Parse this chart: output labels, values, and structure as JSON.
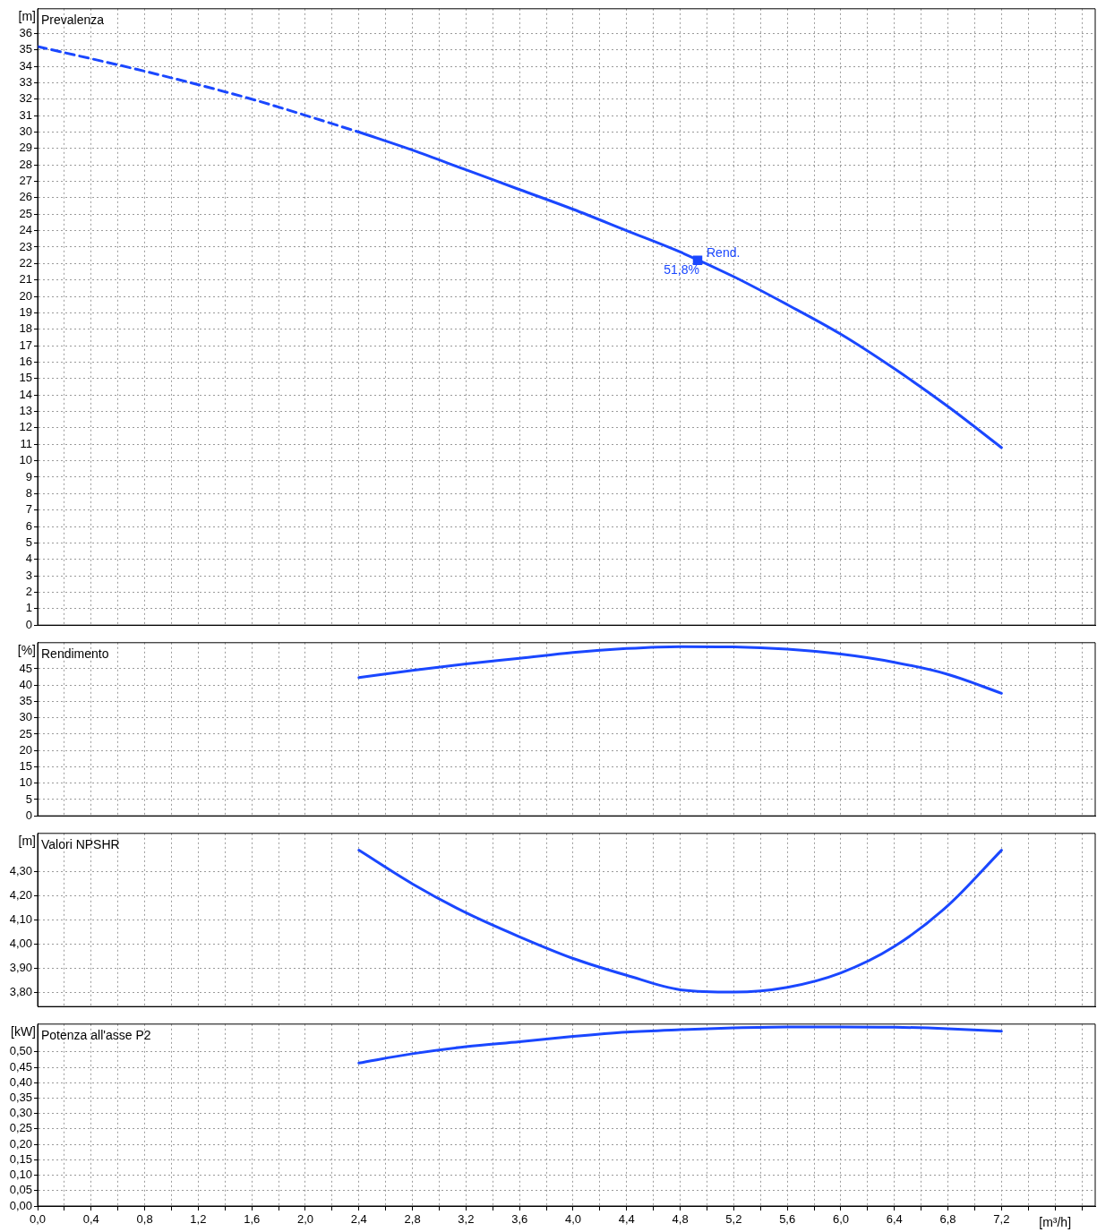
{
  "chart_data": [
    {
      "type": "line",
      "title": "Prevalenza",
      "ylabel": "[m]",
      "xlim": [
        0,
        7.9
      ],
      "xticks": [
        0,
        0.2,
        0.4,
        0.6,
        0.8,
        1.0,
        1.2,
        1.4,
        1.6,
        1.8,
        2.0,
        2.2,
        2.4,
        2.6,
        2.8,
        3.0,
        3.2,
        3.4,
        3.6,
        3.8,
        4.0,
        4.2,
        4.4,
        4.6,
        4.8,
        5.0,
        5.2,
        5.4,
        5.6,
        5.8,
        6.0,
        6.2,
        6.4,
        6.6,
        6.8,
        7.0,
        7.2,
        7.4,
        7.6,
        7.8
      ],
      "ylim": [
        0,
        37.5
      ],
      "yticks": [
        0,
        1,
        2,
        3,
        4,
        5,
        6,
        7,
        8,
        9,
        10,
        11,
        12,
        13,
        14,
        15,
        16,
        17,
        18,
        19,
        20,
        21,
        22,
        23,
        24,
        25,
        26,
        27,
        28,
        29,
        30,
        31,
        32,
        33,
        34,
        35,
        36
      ],
      "tick_labels": "y",
      "grid": true,
      "legend": false,
      "series": [
        {
          "type": "line",
          "color": "#1a47ff",
          "line_style": "dashed",
          "marker": "none",
          "x": [
            0,
            0.8,
            1.6,
            2.4
          ],
          "values": [
            35.2,
            33.7,
            32.0,
            30.0
          ]
        },
        {
          "type": "line",
          "color": "#1a47ff",
          "line_style": "solid",
          "marker": "none",
          "x": [
            2.4,
            2.8,
            3.2,
            3.6,
            4.0,
            4.4,
            4.8,
            5.2,
            5.6,
            6.0,
            6.4,
            6.8,
            7.2
          ],
          "values": [
            30.0,
            28.9,
            27.7,
            26.5,
            25.3,
            24.0,
            22.7,
            21.2,
            19.5,
            17.7,
            15.6,
            13.3,
            10.8
          ]
        },
        {
          "type": "scatter",
          "color": "#1a47ff",
          "marker": "square",
          "x": [
            4.93
          ],
          "values": [
            22.2
          ]
        }
      ],
      "annotations": [
        {
          "text": "Rend.",
          "x": 4.93,
          "y": 22.2
        },
        {
          "text": "51,8%",
          "x": 4.93,
          "y": 22.2
        }
      ]
    },
    {
      "type": "line",
      "title": "Rendimento",
      "ylabel": "[%]",
      "xlim": [
        0,
        7.9
      ],
      "xticks": [
        0,
        0.2,
        0.4,
        0.6,
        0.8,
        1.0,
        1.2,
        1.4,
        1.6,
        1.8,
        2.0,
        2.2,
        2.4,
        2.6,
        2.8,
        3.0,
        3.2,
        3.4,
        3.6,
        3.8,
        4.0,
        4.2,
        4.4,
        4.6,
        4.8,
        5.0,
        5.2,
        5.4,
        5.6,
        5.8,
        6.0,
        6.2,
        6.4,
        6.6,
        6.8,
        7.0,
        7.2,
        7.4,
        7.6,
        7.8
      ],
      "ylim": [
        0,
        53
      ],
      "yticks": [
        0,
        5,
        10,
        15,
        20,
        25,
        30,
        35,
        40,
        45
      ],
      "tick_labels": "y",
      "grid": true,
      "legend": false,
      "series": [
        {
          "type": "line",
          "color": "#1a47ff",
          "line_style": "solid",
          "marker": "none",
          "x": [
            2.4,
            2.8,
            3.2,
            3.6,
            4.0,
            4.4,
            4.8,
            5.2,
            5.6,
            6.0,
            6.4,
            6.8,
            7.2
          ],
          "values": [
            42.3,
            44.5,
            46.5,
            48.2,
            50.0,
            51.2,
            51.8,
            51.7,
            51.0,
            49.5,
            47.0,
            43.3,
            37.5
          ]
        }
      ]
    },
    {
      "type": "line",
      "title": "Valori NPSHR",
      "ylabel": "[m]",
      "xlim": [
        0,
        7.9
      ],
      "xticks": [
        0,
        0.2,
        0.4,
        0.6,
        0.8,
        1.0,
        1.2,
        1.4,
        1.6,
        1.8,
        2.0,
        2.2,
        2.4,
        2.6,
        2.8,
        3.0,
        3.2,
        3.4,
        3.6,
        3.8,
        4.0,
        4.2,
        4.4,
        4.6,
        4.8,
        5.0,
        5.2,
        5.4,
        5.6,
        5.8,
        6.0,
        6.2,
        6.4,
        6.6,
        6.8,
        7.0,
        7.2,
        7.4,
        7.6,
        7.8
      ],
      "ylim": [
        3.74,
        4.46
      ],
      "yticks": [
        {
          "value": 3.8,
          "label": "3,80"
        },
        {
          "value": 3.9,
          "label": "3,90"
        },
        {
          "value": 4.0,
          "label": "4,00"
        },
        {
          "value": 4.1,
          "label": "4,10"
        },
        {
          "value": 4.2,
          "label": "4,20"
        },
        {
          "value": 4.3,
          "label": "4,30"
        }
      ],
      "tick_labels": "y",
      "grid": true,
      "legend": false,
      "series": [
        {
          "type": "line",
          "color": "#1a47ff",
          "line_style": "solid",
          "marker": "none",
          "x": [
            2.4,
            2.8,
            3.2,
            3.6,
            4.0,
            4.4,
            4.8,
            5.2,
            5.6,
            6.0,
            6.4,
            6.8,
            7.2
          ],
          "values": [
            4.39,
            4.25,
            4.13,
            4.03,
            3.94,
            3.87,
            3.81,
            3.8,
            3.82,
            3.88,
            3.99,
            4.16,
            4.39
          ]
        }
      ]
    },
    {
      "type": "line",
      "title": "Potenza all'asse P2",
      "ylabel": "[kW]",
      "xlabel": "[m³/h]",
      "xlim": [
        0,
        7.9
      ],
      "xticks": [
        {
          "value": 0,
          "label": "0,0"
        },
        {
          "value": 0.2,
          "label": null
        },
        {
          "value": 0.4,
          "label": "0,4"
        },
        {
          "value": 0.6,
          "label": null
        },
        {
          "value": 0.8,
          "label": "0,8"
        },
        {
          "value": 1.0,
          "label": null
        },
        {
          "value": 1.2,
          "label": "1,2"
        },
        {
          "value": 1.4,
          "label": null
        },
        {
          "value": 1.6,
          "label": "1,6"
        },
        {
          "value": 1.8,
          "label": null
        },
        {
          "value": 2.0,
          "label": "2,0"
        },
        {
          "value": 2.2,
          "label": null
        },
        {
          "value": 2.4,
          "label": "2,4"
        },
        {
          "value": 2.6,
          "label": null
        },
        {
          "value": 2.8,
          "label": "2,8"
        },
        {
          "value": 3.0,
          "label": null
        },
        {
          "value": 3.2,
          "label": "3,2"
        },
        {
          "value": 3.4,
          "label": null
        },
        {
          "value": 3.6,
          "label": "3,6"
        },
        {
          "value": 3.8,
          "label": null
        },
        {
          "value": 4.0,
          "label": "4,0"
        },
        {
          "value": 4.2,
          "label": null
        },
        {
          "value": 4.4,
          "label": "4,4"
        },
        {
          "value": 4.6,
          "label": null
        },
        {
          "value": 4.8,
          "label": "4,8"
        },
        {
          "value": 5.0,
          "label": null
        },
        {
          "value": 5.2,
          "label": "5,2"
        },
        {
          "value": 5.4,
          "label": null
        },
        {
          "value": 5.6,
          "label": "5,6"
        },
        {
          "value": 5.8,
          "label": null
        },
        {
          "value": 6.0,
          "label": "6,0"
        },
        {
          "value": 6.2,
          "label": null
        },
        {
          "value": 6.4,
          "label": "6,4"
        },
        {
          "value": 6.6,
          "label": null
        },
        {
          "value": 6.8,
          "label": "6,8"
        },
        {
          "value": 7.0,
          "label": null
        },
        {
          "value": 7.2,
          "label": "7,2"
        },
        {
          "value": 7.4,
          "label": null
        },
        {
          "value": 7.6,
          "label": null
        },
        {
          "value": 7.8,
          "label": null
        }
      ],
      "ylim": [
        0,
        0.59
      ],
      "yticks": [
        {
          "value": 0,
          "label": "0,00"
        },
        {
          "value": 0.05,
          "label": "0,05"
        },
        {
          "value": 0.1,
          "label": "0,10"
        },
        {
          "value": 0.15,
          "label": "0,15"
        },
        {
          "value": 0.2,
          "label": "0,20"
        },
        {
          "value": 0.25,
          "label": "0,25"
        },
        {
          "value": 0.3,
          "label": "0,30"
        },
        {
          "value": 0.35,
          "label": "0,35"
        },
        {
          "value": 0.4,
          "label": "0,40"
        },
        {
          "value": 0.45,
          "label": "0,45"
        },
        {
          "value": 0.5,
          "label": "0,50"
        }
      ],
      "grid": true,
      "legend": false,
      "series": [
        {
          "type": "line",
          "color": "#1a47ff",
          "line_style": "solid",
          "marker": "none",
          "x": [
            2.4,
            2.8,
            3.2,
            3.6,
            4.0,
            4.4,
            4.8,
            5.2,
            5.6,
            6.0,
            6.4,
            6.8,
            7.2
          ],
          "values": [
            0.464,
            0.494,
            0.517,
            0.533,
            0.55,
            0.564,
            0.572,
            0.578,
            0.581,
            0.581,
            0.58,
            0.575,
            0.567
          ]
        }
      ]
    }
  ]
}
